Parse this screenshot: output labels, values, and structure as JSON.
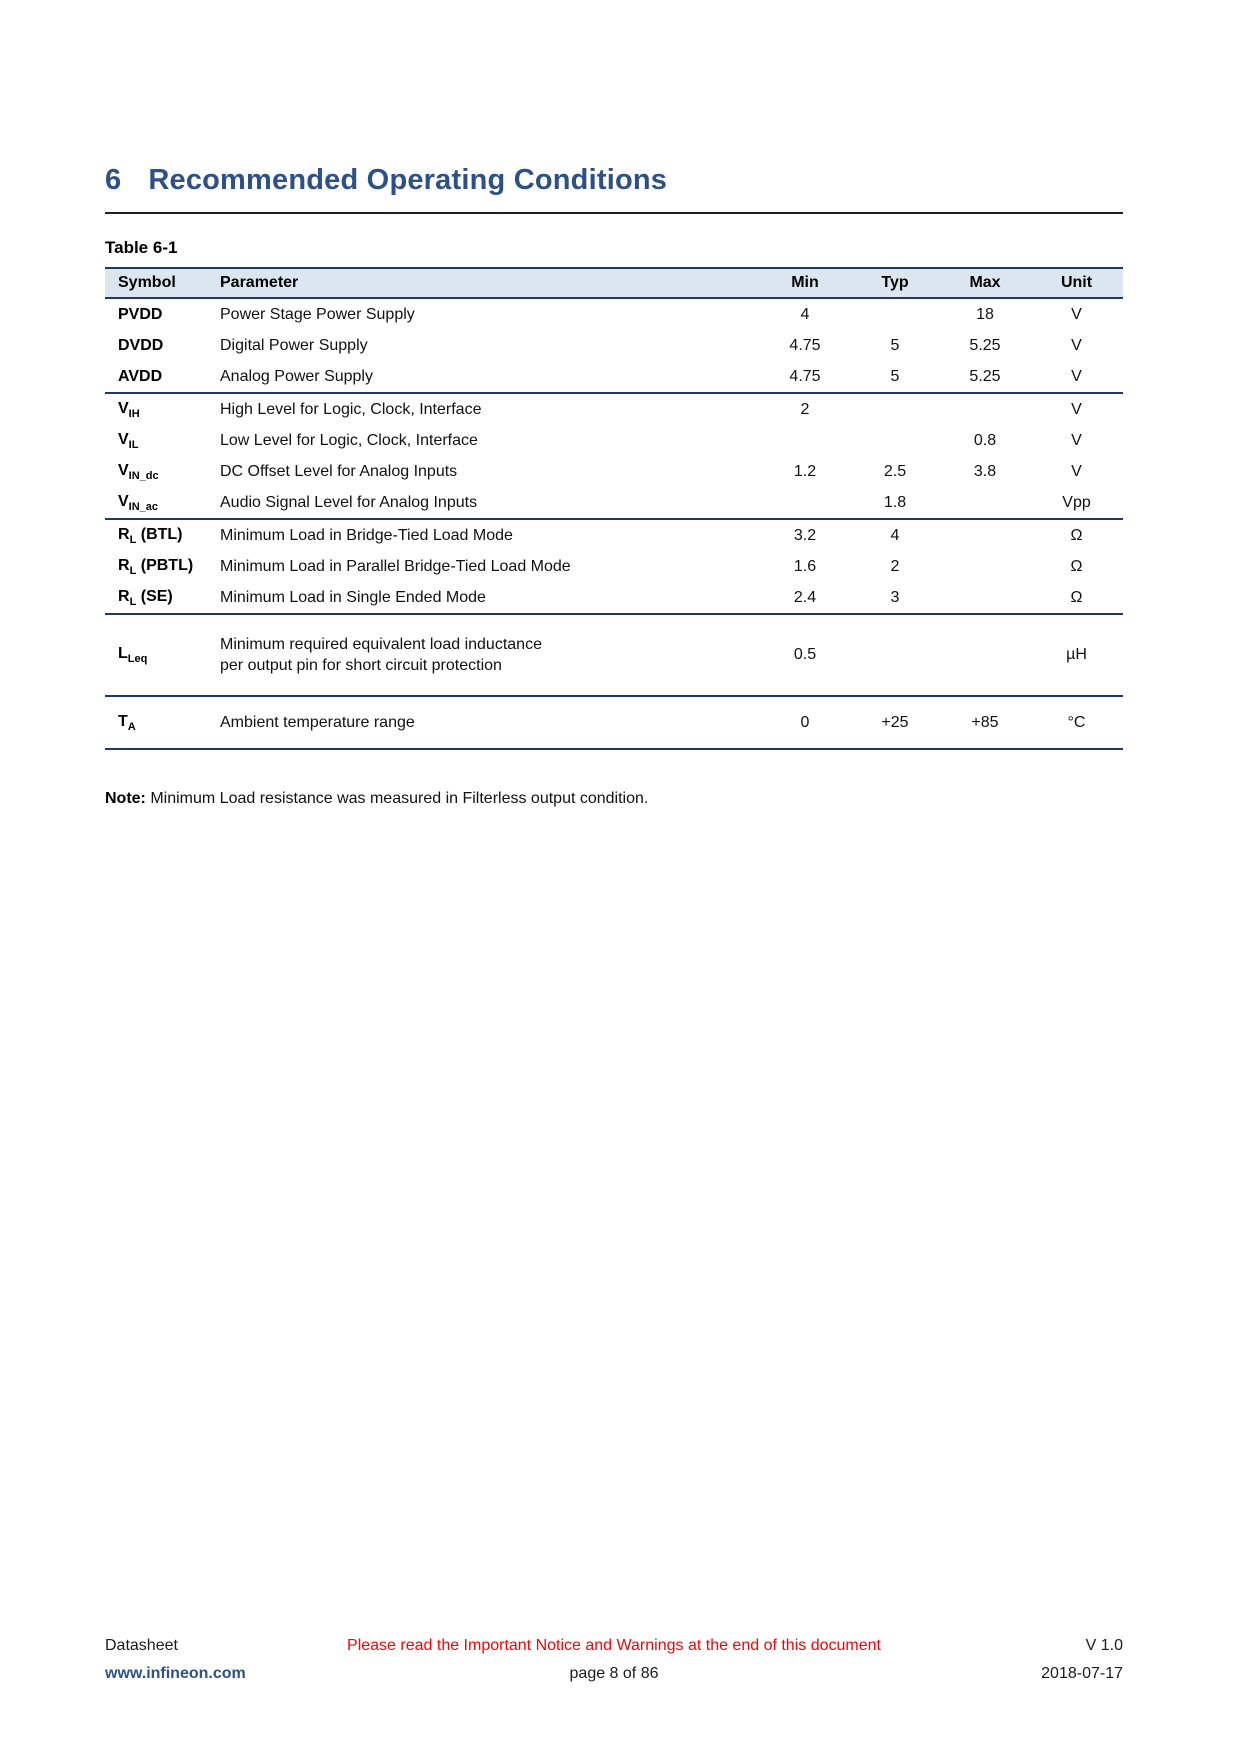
{
  "heading": {
    "number": "6",
    "title": "Recommended Operating Conditions"
  },
  "table_label": "Table 6-1",
  "table": {
    "headers": {
      "symbol": "Symbol",
      "parameter": "Parameter",
      "min": "Min",
      "typ": "Typ",
      "max": "Max",
      "unit": "Unit"
    },
    "groups": [
      {
        "rows": [
          {
            "sym": "PVDD",
            "sub": "",
            "suf": "",
            "parameter": "Power Stage Power Supply",
            "min": "4",
            "typ": "",
            "max": "18",
            "unit": "V"
          },
          {
            "sym": "DVDD",
            "sub": "",
            "suf": "",
            "parameter": "Digital Power Supply",
            "min": "4.75",
            "typ": "5",
            "max": "5.25",
            "unit": "V"
          },
          {
            "sym": "AVDD",
            "sub": "",
            "suf": "",
            "parameter": "Analog Power Supply",
            "min": "4.75",
            "typ": "5",
            "max": "5.25",
            "unit": "V"
          }
        ]
      },
      {
        "rows": [
          {
            "sym": "V",
            "sub": "IH",
            "suf": "",
            "parameter": "High Level for Logic, Clock, Interface",
            "min": "2",
            "typ": "",
            "max": "",
            "unit": "V"
          },
          {
            "sym": "V",
            "sub": "IL",
            "suf": "",
            "parameter": "Low Level for Logic, Clock, Interface",
            "min": "",
            "typ": "",
            "max": "0.8",
            "unit": "V"
          },
          {
            "sym": "V",
            "sub": "IN_dc",
            "suf": "",
            "parameter": "DC Offset Level for Analog Inputs",
            "min": "1.2",
            "typ": "2.5",
            "max": "3.8",
            "unit": "V"
          },
          {
            "sym": "V",
            "sub": "IN_ac",
            "suf": "",
            "parameter": "Audio Signal Level for Analog Inputs",
            "min": "",
            "typ": "1.8",
            "max": "",
            "unit": "Vpp"
          }
        ]
      },
      {
        "rows": [
          {
            "sym": "R",
            "sub": "L",
            "suf": " (BTL)",
            "parameter": "Minimum Load in Bridge-Tied Load Mode",
            "min": "3.2",
            "typ": "4",
            "max": "",
            "unit": "Ω"
          },
          {
            "sym": "R",
            "sub": "L",
            "suf": " (PBTL)",
            "parameter": "Minimum Load in Parallel Bridge-Tied Load Mode",
            "min": "1.6",
            "typ": "2",
            "max": "",
            "unit": "Ω"
          },
          {
            "sym": "R",
            "sub": "L",
            "suf": " (SE)",
            "parameter": "Minimum Load in Single Ended Mode",
            "min": "2.4",
            "typ": "3",
            "max": "",
            "unit": "Ω"
          }
        ]
      },
      {
        "rows": [
          {
            "sym": "L",
            "sub": "Leq",
            "suf": "",
            "parameter": "Minimum required equivalent load inductance\nper output pin for short circuit protection",
            "min": "0.5",
            "typ": "",
            "max": "",
            "unit": "µH",
            "pad": 19
          }
        ]
      },
      {
        "rows": [
          {
            "sym": "T",
            "sub": "A",
            "suf": "",
            "parameter": "Ambient temperature range",
            "min": "0",
            "typ": "+25",
            "max": "+85",
            "unit": "°C",
            "pad": 15
          }
        ]
      }
    ]
  },
  "note": {
    "label": "Note:",
    "text": " Minimum Load resistance was measured in Filterless output condition."
  },
  "footer": {
    "doc_type": "Datasheet",
    "website": "www.infineon.com",
    "notice": "Please read the Important Notice and Warnings at the end of this document",
    "page_info": "page 8 of 86",
    "version": "V 1.0",
    "date": "2018-07-17"
  },
  "colors": {
    "heading_blue": "#2d5087",
    "table_border": "#1f3864",
    "table_header_bg": "#dce6f1",
    "notice_red": "#ff0000"
  }
}
